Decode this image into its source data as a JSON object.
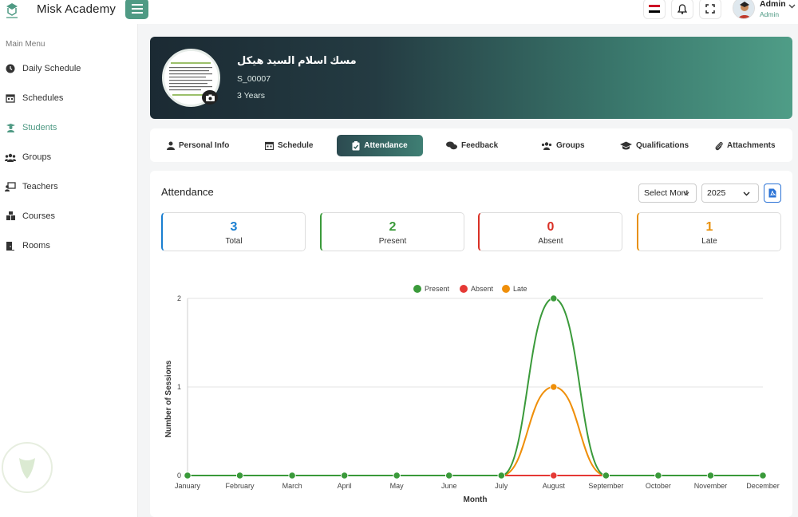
{
  "app": {
    "brand": "Misk Academy"
  },
  "header": {
    "admin_name": "Admin",
    "admin_role": "Admin",
    "flag_colors": [
      "#ce1126",
      "#ffffff",
      "#000000"
    ]
  },
  "sidebar": {
    "title": "Main Menu",
    "items": [
      {
        "label": "Daily Schedule",
        "icon": "clock-icon"
      },
      {
        "label": "Schedules",
        "icon": "calendar-icon"
      },
      {
        "label": "Students",
        "icon": "student-icon",
        "active": true
      },
      {
        "label": "Groups",
        "icon": "users-icon"
      },
      {
        "label": "Teachers",
        "icon": "teacher-icon"
      },
      {
        "label": "Courses",
        "icon": "courses-icon"
      },
      {
        "label": "Rooms",
        "icon": "rooms-icon"
      }
    ]
  },
  "profile": {
    "name": "مسك اسلام السيد هيكل",
    "code": "S_00007",
    "age": "3 Years"
  },
  "tabs": [
    {
      "label": "Personal Info",
      "icon": "user-icon"
    },
    {
      "label": "Schedule",
      "icon": "calendar-icon"
    },
    {
      "label": "Attendance",
      "icon": "clipboard-check-icon",
      "active": true
    },
    {
      "label": "Feedback",
      "icon": "comments-icon"
    },
    {
      "label": "Groups",
      "icon": "users-icon"
    },
    {
      "label": "Qualifications",
      "icon": "graduation-cap-icon"
    },
    {
      "label": "Attachments",
      "icon": "paperclip-icon"
    }
  ],
  "attendance": {
    "title": "Attendance",
    "month_select": "Select Mont",
    "year_select": "2025",
    "stats": [
      {
        "value": "3",
        "label": "Total",
        "color": "#1a7fd1"
      },
      {
        "value": "2",
        "label": "Present",
        "color": "#3a9a3a"
      },
      {
        "value": "0",
        "label": "Absent",
        "color": "#d93025"
      },
      {
        "value": "1",
        "label": "Late",
        "color": "#e8900b"
      }
    ]
  },
  "chart_data": {
    "type": "line",
    "categories": [
      "January",
      "February",
      "March",
      "April",
      "May",
      "June",
      "July",
      "August",
      "September",
      "October",
      "November",
      "December"
    ],
    "series": [
      {
        "name": "Present",
        "color": "#3a9a3a",
        "values": [
          0,
          0,
          0,
          0,
          0,
          0,
          0,
          2,
          0,
          0,
          0,
          0
        ]
      },
      {
        "name": "Absent",
        "color": "#e53935",
        "values": [
          0,
          0,
          0,
          0,
          0,
          0,
          0,
          0,
          0,
          0,
          0,
          0
        ]
      },
      {
        "name": "Late",
        "color": "#ef8f0a",
        "values": [
          0,
          0,
          0,
          0,
          0,
          0,
          0,
          1,
          0,
          0,
          0,
          0
        ]
      }
    ],
    "xlabel": "Month",
    "ylabel": "Number of Sessions",
    "yticks": [
      "0",
      "1",
      "2"
    ],
    "ylim": [
      0,
      2
    ],
    "legend": "top-center",
    "grid": true
  }
}
